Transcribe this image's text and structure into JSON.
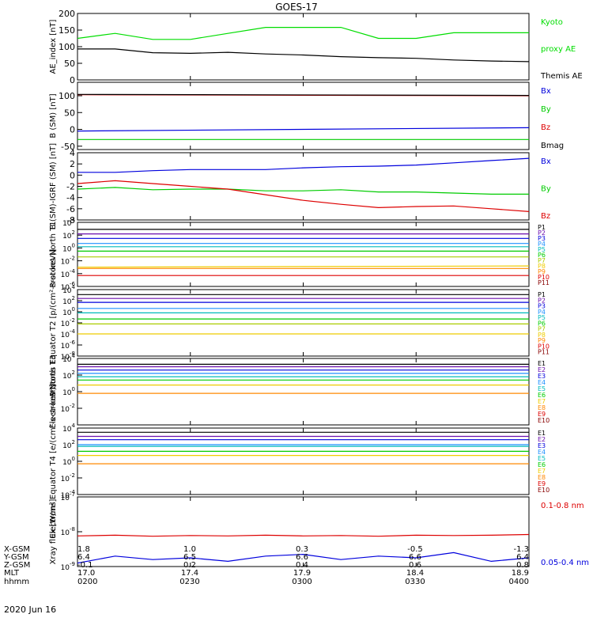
{
  "title": "GOES-17",
  "date_label": "2020 Jun 16",
  "footer": {
    "row_labels": [
      "X-GSM",
      "Y-GSM",
      "Z-GSM",
      "MLT",
      "hhmm"
    ],
    "columns": [
      {
        "values": [
          "1.8",
          "6.4",
          "-0.1",
          "17.0",
          "0200"
        ]
      },
      {
        "values": [
          "1.0",
          "6.5",
          "0.2",
          "17.4",
          "0230"
        ]
      },
      {
        "values": [
          "0.3",
          "6.6",
          "0.4",
          "17.9",
          "0300"
        ]
      },
      {
        "values": [
          "-0.5",
          "6.6",
          "0.6",
          "18.4",
          "0330"
        ]
      },
      {
        "values": [
          "-1.3",
          "6.4",
          "0.8",
          "18.9",
          "0400"
        ]
      }
    ]
  },
  "chart_data": [
    {
      "type": "line",
      "ylabel": "AE_index [nT]",
      "ylim": [
        0,
        200
      ],
      "yticks": [
        0,
        50,
        100,
        150,
        200
      ],
      "ytick_labels": [
        "0",
        "50",
        "100",
        "150",
        "200"
      ],
      "x": [
        0,
        10,
        20,
        30,
        40,
        50,
        60,
        70,
        80,
        90,
        100,
        110,
        120
      ],
      "series": [
        {
          "name": "Kyoto proxy AE",
          "color": "#00dd00",
          "values": [
            125,
            140,
            122,
            122,
            140,
            158,
            158,
            158,
            125,
            125,
            142,
            142,
            142
          ]
        },
        {
          "name": "Themis AE",
          "color": "#000000",
          "values": [
            93,
            93,
            82,
            80,
            83,
            78,
            75,
            70,
            67,
            65,
            60,
            57,
            55
          ]
        }
      ],
      "legend": [
        {
          "text": "Kyoto",
          "color": "#00dd00"
        },
        {
          "text": "proxy AE",
          "color": "#00dd00"
        },
        {
          "text": "Themis AE",
          "color": "#000000"
        }
      ]
    },
    {
      "type": "line",
      "ylabel": "B (SM) [nT]",
      "ylim": [
        -60,
        140
      ],
      "yticks": [
        -50,
        0,
        50,
        100
      ],
      "ytick_labels": [
        "-50",
        "0",
        "50",
        "100"
      ],
      "x": [
        0,
        120
      ],
      "series": [
        {
          "name": "Bx",
          "color": "#0000dd",
          "values": [
            -5,
            5
          ]
        },
        {
          "name": "By",
          "color": "#00cc00",
          "values": [
            -30,
            -30
          ]
        },
        {
          "name": "Bz",
          "color": "#dd0000",
          "values": [
            103,
            100
          ]
        },
        {
          "name": "Bmag",
          "color": "#000000",
          "values": [
            104,
            101
          ]
        }
      ],
      "legend": [
        {
          "text": "Bx",
          "color": "#0000dd"
        },
        {
          "text": "By",
          "color": "#00cc00"
        },
        {
          "text": "Bz",
          "color": "#dd0000"
        },
        {
          "text": "Bmag",
          "color": "#000000"
        }
      ]
    },
    {
      "type": "line",
      "ylabel": "B (SM)-IGRF (SM) [nT]",
      "ylim": [
        -8,
        4
      ],
      "yticks": [
        -8,
        -6,
        -4,
        -2,
        0,
        2,
        4
      ],
      "ytick_labels": [
        "-8",
        "-6",
        "-4",
        "-2",
        "0",
        "2",
        "4"
      ],
      "x": [
        0,
        10,
        20,
        30,
        40,
        50,
        60,
        70,
        80,
        90,
        100,
        110,
        120
      ],
      "series": [
        {
          "name": "Bx",
          "color": "#0000dd",
          "values": [
            0.5,
            0.5,
            0.8,
            1.0,
            1.0,
            1.0,
            1.3,
            1.5,
            1.6,
            1.8,
            2.2,
            2.6,
            3.0
          ]
        },
        {
          "name": "By",
          "color": "#00cc00",
          "values": [
            -2.5,
            -2.2,
            -2.6,
            -2.5,
            -2.5,
            -2.8,
            -2.8,
            -2.6,
            -3.0,
            -3.0,
            -3.2,
            -3.4,
            -3.4
          ]
        },
        {
          "name": "Bz",
          "color": "#dd0000",
          "values": [
            -1.5,
            -1.0,
            -1.5,
            -2.0,
            -2.5,
            -3.5,
            -4.5,
            -5.2,
            -5.8,
            -5.6,
            -5.5,
            -6.0,
            -6.5
          ]
        }
      ],
      "legend": [
        {
          "text": "Bx",
          "color": "#0000dd"
        },
        {
          "text": "By",
          "color": "#00cc00"
        },
        {
          "text": "Bz",
          "color": "#dd0000"
        }
      ]
    },
    {
      "type": "line",
      "ylabel": "Protons North T1",
      "log": true,
      "ylim_exp": [
        -6,
        4
      ],
      "yticks_exp": [
        -6,
        -4,
        -2,
        0,
        2,
        4
      ],
      "x": [
        0,
        120
      ],
      "series": [
        {
          "name": "P1",
          "color": "#000000",
          "exp": [
            2.9,
            2.9
          ]
        },
        {
          "name": "P2",
          "color": "#6a0dad",
          "exp": [
            2.2,
            2.2
          ]
        },
        {
          "name": "P3",
          "color": "#0000dd",
          "exp": [
            1.5,
            1.5
          ]
        },
        {
          "name": "P4",
          "color": "#1e90ff",
          "exp": [
            0.7,
            0.7
          ]
        },
        {
          "name": "P5",
          "color": "#00bbbb",
          "exp": [
            0.2,
            0.2
          ]
        },
        {
          "name": "P6",
          "color": "#00cc00",
          "exp": [
            -0.5,
            -0.5
          ]
        },
        {
          "name": "P7",
          "color": "#aacc00",
          "exp": [
            -1.4,
            -1.4
          ]
        },
        {
          "name": "P8",
          "color": "#eecc00",
          "exp": [
            -3.0,
            -2.8
          ]
        },
        {
          "name": "P9",
          "color": "#ff8800",
          "exp": [
            -3.2,
            -3.2
          ]
        },
        {
          "name": "P10",
          "color": "#dd0000",
          "exp": [
            -4.3,
            -4.3
          ]
        },
        {
          "name": "P11",
          "color": "#880000",
          "exp": [
            -6.5,
            -6.5
          ]
        }
      ]
    },
    {
      "type": "line",
      "ylabel": "Protons Equator T2 [p/(cm²-s-sr-keV)]",
      "log": true,
      "ylim_exp": [
        -8,
        4
      ],
      "yticks_exp": [
        -8,
        -6,
        -4,
        -2,
        0,
        2,
        4
      ],
      "x": [
        0,
        120
      ],
      "series": [
        {
          "name": "P1",
          "color": "#000000",
          "exp": [
            3.1,
            3.1
          ]
        },
        {
          "name": "P2",
          "color": "#6a0dad",
          "exp": [
            2.4,
            2.4
          ]
        },
        {
          "name": "P3",
          "color": "#0000dd",
          "exp": [
            1.7,
            1.7
          ]
        },
        {
          "name": "P4",
          "color": "#1e90ff",
          "exp": [
            0.6,
            0.6
          ]
        },
        {
          "name": "P5",
          "color": "#00bbbb",
          "exp": [
            -0.2,
            -0.2
          ]
        },
        {
          "name": "P6",
          "color": "#00cc00",
          "exp": [
            -1.3,
            -1.3
          ]
        },
        {
          "name": "P7",
          "color": "#aacc00",
          "exp": [
            -2.2,
            -2.2
          ]
        },
        {
          "name": "P8",
          "color": "#eecc00",
          "exp": [
            -4.0,
            -4.0
          ]
        },
        {
          "name": "P9",
          "color": "#ff8800",
          "exp": [
            -9,
            -9
          ]
        },
        {
          "name": "P10",
          "color": "#dd0000",
          "exp": [
            -9,
            -9
          ]
        },
        {
          "name": "P11",
          "color": "#880000",
          "exp": [
            -9,
            -9
          ]
        }
      ]
    },
    {
      "type": "line",
      "ylabel": "Electrons North T3",
      "log": true,
      "ylim_exp": [
        -4,
        4
      ],
      "yticks_exp": [
        -2,
        0,
        2,
        4
      ],
      "x": [
        0,
        120
      ],
      "series": [
        {
          "name": "E1",
          "color": "#000000",
          "exp": [
            3.3,
            3.3
          ]
        },
        {
          "name": "E2",
          "color": "#6a0dad",
          "exp": [
            3.0,
            3.0
          ]
        },
        {
          "name": "E3",
          "color": "#0000dd",
          "exp": [
            2.6,
            2.6
          ]
        },
        {
          "name": "E4",
          "color": "#1e90ff",
          "exp": [
            2.2,
            2.2
          ]
        },
        {
          "name": "E5",
          "color": "#00bbbb",
          "exp": [
            1.8,
            1.8
          ]
        },
        {
          "name": "E6",
          "color": "#00cc00",
          "exp": [
            1.4,
            1.4
          ]
        },
        {
          "name": "E7",
          "color": "#eecc00",
          "exp": [
            0.8,
            0.8
          ]
        },
        {
          "name": "E8",
          "color": "#ff8800",
          "exp": [
            -0.2,
            -0.2
          ]
        },
        {
          "name": "E9",
          "color": "#dd0000",
          "exp": [
            -5,
            -5
          ]
        },
        {
          "name": "E10",
          "color": "#880000",
          "exp": [
            -5,
            -5
          ]
        }
      ]
    },
    {
      "type": "line",
      "ylabel": "Electrons Equator T4 [e/(cm²-s-sr-keV)]",
      "log": true,
      "ylim_exp": [
        -4,
        4
      ],
      "yticks_exp": [
        -4,
        -2,
        0,
        2,
        4
      ],
      "x": [
        0,
        120
      ],
      "series": [
        {
          "name": "E1",
          "color": "#000000",
          "exp": [
            3.5,
            3.5
          ]
        },
        {
          "name": "E2",
          "color": "#6a0dad",
          "exp": [
            3.0,
            3.0
          ]
        },
        {
          "name": "E3",
          "color": "#0000dd",
          "exp": [
            2.6,
            2.6
          ]
        },
        {
          "name": "E4",
          "color": "#1e90ff",
          "exp": [
            2.0,
            2.0
          ]
        },
        {
          "name": "E5",
          "color": "#00bbbb",
          "exp": [
            1.8,
            1.8
          ]
        },
        {
          "name": "E6",
          "color": "#00cc00",
          "exp": [
            1.2,
            1.2
          ]
        },
        {
          "name": "E7",
          "color": "#eecc00",
          "exp": [
            0.7,
            0.7
          ]
        },
        {
          "name": "E8",
          "color": "#ff8800",
          "exp": [
            -0.3,
            -0.3
          ]
        },
        {
          "name": "E9",
          "color": "#dd0000",
          "exp": [
            -5,
            -5
          ]
        },
        {
          "name": "E10",
          "color": "#880000",
          "exp": [
            -5,
            -5
          ]
        }
      ]
    },
    {
      "type": "line",
      "ylabel": "Xray flux [W/m²]",
      "log": true,
      "ylim_exp": [
        -9,
        -7
      ],
      "yticks_exp": [
        -9,
        -8,
        -7
      ],
      "x": [
        0,
        10,
        20,
        30,
        40,
        50,
        60,
        70,
        80,
        90,
        100,
        110,
        120
      ],
      "series": [
        {
          "name": "0.1-0.8 nm",
          "color": "#dd0000",
          "exp": [
            -8.12,
            -8.1,
            -8.13,
            -8.11,
            -8.12,
            -8.1,
            -8.12,
            -8.11,
            -8.13,
            -8.1,
            -8.11,
            -8.1,
            -8.08
          ]
        },
        {
          "name": "0.05-0.4 nm",
          "color": "#0000dd",
          "exp": [
            -8.9,
            -8.7,
            -8.8,
            -8.75,
            -8.85,
            -8.7,
            -8.65,
            -8.8,
            -8.7,
            -8.75,
            -8.6,
            -8.85,
            -8.75
          ]
        }
      ],
      "legend": [
        {
          "text": "0.1-0.8 nm",
          "color": "#dd0000"
        },
        {
          "text": "0.05-0.4 nm",
          "color": "#0000dd"
        }
      ]
    }
  ]
}
